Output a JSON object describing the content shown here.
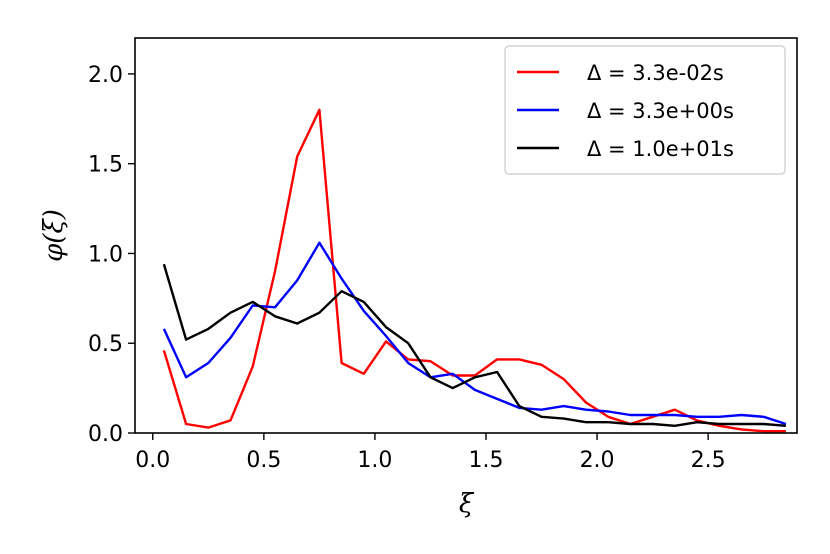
{
  "chart_data": {
    "type": "line",
    "xlabel": "ξ",
    "ylabel": "φ(ξ)",
    "xlim": [
      -0.08,
      2.9
    ],
    "ylim": [
      0,
      2.2
    ],
    "xticks": [
      {
        "value": 0.0,
        "label": "0.0"
      },
      {
        "value": 0.5,
        "label": "0.5"
      },
      {
        "value": 1.0,
        "label": "1.0"
      },
      {
        "value": 1.5,
        "label": "1.5"
      },
      {
        "value": 2.0,
        "label": "2.0"
      },
      {
        "value": 2.5,
        "label": "2.5"
      }
    ],
    "yticks": [
      {
        "value": 0.0,
        "label": "0.0"
      },
      {
        "value": 0.5,
        "label": "0.5"
      },
      {
        "value": 1.0,
        "label": "1.0"
      },
      {
        "value": 1.5,
        "label": "1.5"
      },
      {
        "value": 2.0,
        "label": "2.0"
      }
    ],
    "grid": false,
    "legend_position": "top-right",
    "x": [
      0.05,
      0.15,
      0.25,
      0.35,
      0.45,
      0.55,
      0.65,
      0.75,
      0.85,
      0.95,
      1.05,
      1.15,
      1.25,
      1.35,
      1.45,
      1.55,
      1.65,
      1.75,
      1.85,
      1.95,
      2.05,
      2.15,
      2.25,
      2.35,
      2.45,
      2.55,
      2.65,
      2.75,
      2.85
    ],
    "series": [
      {
        "name": "Δ = 3.3e-02s",
        "color": "#ff0000",
        "values": [
          0.46,
          0.05,
          0.03,
          0.07,
          0.37,
          0.9,
          1.54,
          1.8,
          0.39,
          0.33,
          0.51,
          0.41,
          0.4,
          0.32,
          0.32,
          0.41,
          0.41,
          0.38,
          0.3,
          0.17,
          0.09,
          0.05,
          0.09,
          0.13,
          0.07,
          0.04,
          0.02,
          0.01,
          0.01
        ]
      },
      {
        "name": "Δ = 3.3e+00s",
        "color": "#0000ff",
        "values": [
          0.58,
          0.31,
          0.39,
          0.53,
          0.71,
          0.7,
          0.85,
          1.06,
          0.86,
          0.68,
          0.54,
          0.39,
          0.31,
          0.33,
          0.24,
          0.19,
          0.14,
          0.13,
          0.15,
          0.13,
          0.12,
          0.1,
          0.1,
          0.1,
          0.09,
          0.09,
          0.1,
          0.09,
          0.05
        ]
      },
      {
        "name": "Δ = 1.0e+01s",
        "color": "#000000",
        "values": [
          0.94,
          0.52,
          0.58,
          0.67,
          0.73,
          0.65,
          0.61,
          0.67,
          0.79,
          0.73,
          0.59,
          0.5,
          0.31,
          0.25,
          0.31,
          0.34,
          0.15,
          0.09,
          0.08,
          0.06,
          0.06,
          0.05,
          0.05,
          0.04,
          0.06,
          0.05,
          0.05,
          0.05,
          0.04
        ]
      }
    ]
  }
}
